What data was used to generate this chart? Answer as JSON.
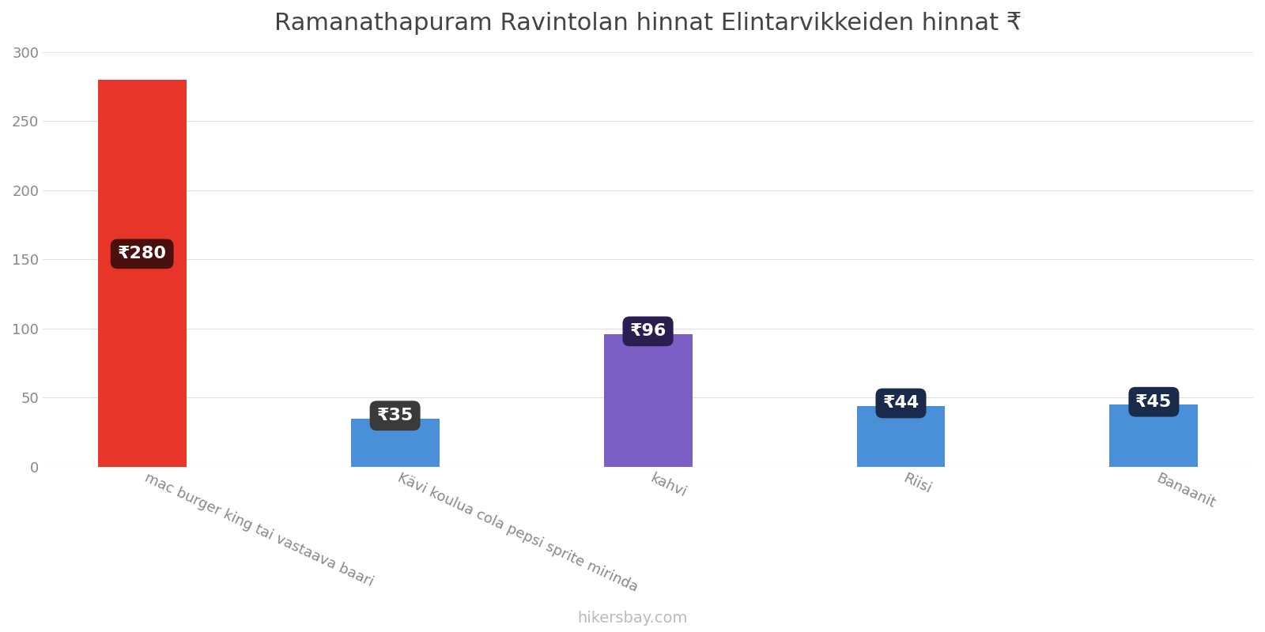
{
  "title": "Ramanathapuram Ravintolan hinnat Elintarvikkeiden hinnat ₹",
  "categories": [
    "mac burger king tai vastaava baari",
    "Kävi koulua cola pepsi sprite mirinda",
    "kahvi",
    "Riisi",
    "Banaanit"
  ],
  "values": [
    280,
    35,
    96,
    44,
    45
  ],
  "bar_colors": [
    "#e8352a",
    "#4a90d9",
    "#7b5fc4",
    "#4a90d9",
    "#4a90d9"
  ],
  "label_bg_colors": [
    "#4a1010",
    "#3a3a3a",
    "#2a1e50",
    "#1a2a4a",
    "#1a2a4a"
  ],
  "ylim": [
    0,
    300
  ],
  "yticks": [
    0,
    50,
    100,
    150,
    200,
    250,
    300
  ],
  "watermark": "hikersbay.com",
  "currency_symbol": "₹",
  "background_color": "#ffffff",
  "title_fontsize": 22,
  "tick_fontsize": 13,
  "label_fontsize": 16,
  "watermark_fontsize": 14,
  "bar_width": 0.35
}
